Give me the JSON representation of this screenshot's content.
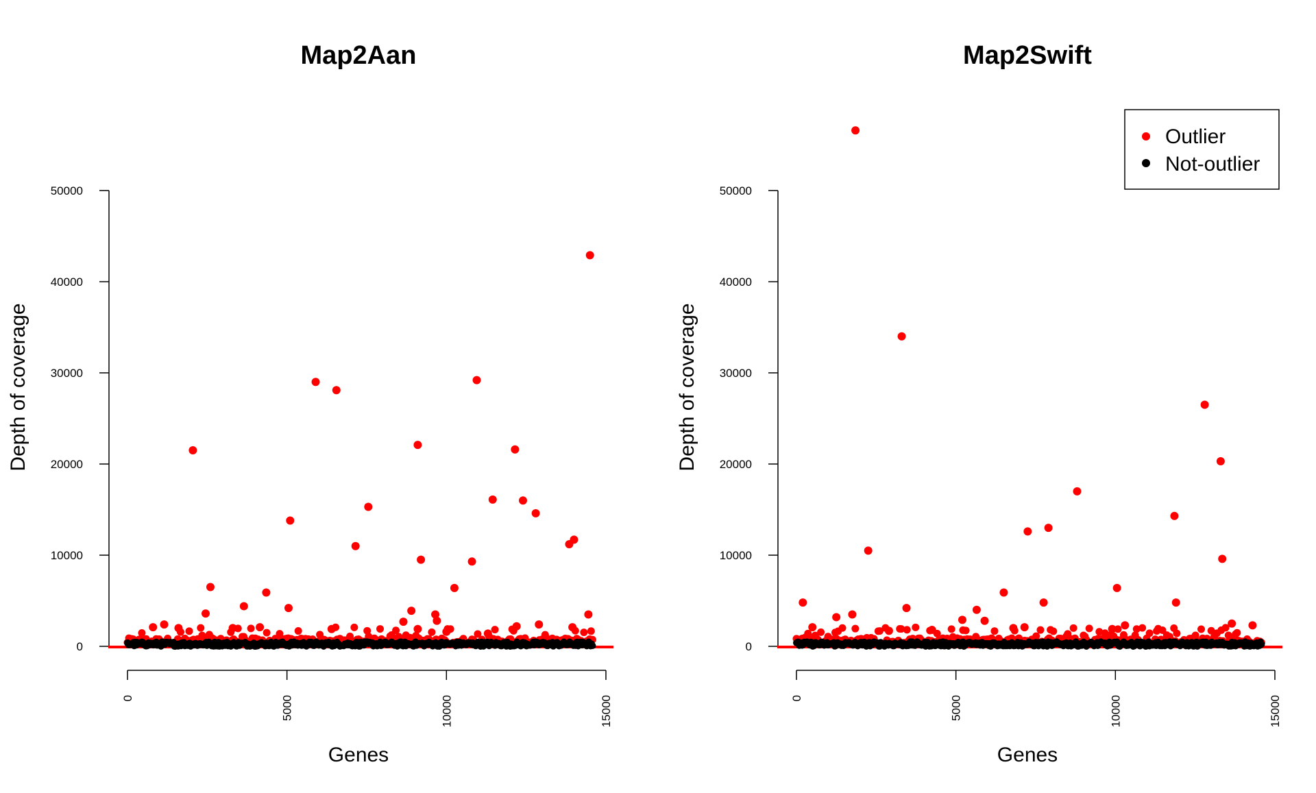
{
  "colors": {
    "outlier": "#ff0000",
    "not_outlier": "#000000",
    "axis": "#000000",
    "background": "#ffffff"
  },
  "legend": {
    "placement": "top-right of right panel",
    "entries": [
      {
        "label": "Outlier",
        "color": "#ff0000"
      },
      {
        "label": "Not-outlier",
        "color": "#000000"
      }
    ]
  },
  "chart_data": [
    {
      "type": "scatter",
      "title": "Map2Aan",
      "xlabel": "Genes",
      "ylabel": "Depth of coverage",
      "xlim": [
        0,
        15000
      ],
      "ylim": [
        0,
        50000
      ],
      "xticks": [
        0,
        5000,
        10000,
        15000
      ],
      "yticks": [
        0,
        10000,
        20000,
        30000,
        40000,
        50000
      ],
      "grid": false,
      "baseline": {
        "x_start": 0,
        "x_end": 14600,
        "description": "dense band of Outlier and Not-outlier points near 0-2000 across all genes"
      },
      "outliers": [
        [
          2050,
          21500
        ],
        [
          2450,
          3600
        ],
        [
          2600,
          6500
        ],
        [
          3650,
          4400
        ],
        [
          4350,
          5900
        ],
        [
          5050,
          4200
        ],
        [
          5100,
          13800
        ],
        [
          5900,
          29000
        ],
        [
          6550,
          28100
        ],
        [
          7150,
          11000
        ],
        [
          7550,
          15300
        ],
        [
          8650,
          2700
        ],
        [
          8900,
          3900
        ],
        [
          9100,
          22100
        ],
        [
          9200,
          9500
        ],
        [
          9650,
          3500
        ],
        [
          9700,
          2800
        ],
        [
          10250,
          6400
        ],
        [
          10800,
          9300
        ],
        [
          10950,
          29200
        ],
        [
          11450,
          16100
        ],
        [
          12150,
          21600
        ],
        [
          12400,
          16000
        ],
        [
          12800,
          14600
        ],
        [
          13850,
          11200
        ],
        [
          14000,
          11700
        ],
        [
          14500,
          42900
        ],
        [
          14450,
          3500
        ],
        [
          1150,
          2400
        ],
        [
          3300,
          2000
        ],
        [
          4150,
          2100
        ],
        [
          6400,
          1900
        ],
        [
          9100,
          1900
        ],
        [
          12200,
          2200
        ],
        [
          12900,
          2400
        ],
        [
          13950,
          2100
        ],
        [
          800,
          2100
        ],
        [
          1600,
          2000
        ],
        [
          10000,
          1600
        ],
        [
          11300,
          1400
        ]
      ]
    },
    {
      "type": "scatter",
      "title": "Map2Swift",
      "xlabel": "Genes",
      "ylabel": "Depth of coverage",
      "xlim": [
        0,
        15000
      ],
      "ylim": [
        0,
        50000
      ],
      "xticks": [
        0,
        5000,
        10000,
        15000
      ],
      "yticks": [
        0,
        10000,
        20000,
        30000,
        40000,
        50000
      ],
      "grid": false,
      "baseline": {
        "x_start": 0,
        "x_end": 14600,
        "description": "dense band of Outlier and Not-outlier points near 0-2000 across all genes"
      },
      "outliers": [
        [
          1850,
          56600
        ],
        [
          3300,
          34000
        ],
        [
          2250,
          10500
        ],
        [
          3450,
          4200
        ],
        [
          200,
          4800
        ],
        [
          1250,
          3200
        ],
        [
          1750,
          3500
        ],
        [
          5200,
          2900
        ],
        [
          5650,
          4000
        ],
        [
          5900,
          2800
        ],
        [
          6500,
          5900
        ],
        [
          7250,
          12600
        ],
        [
          7900,
          13000
        ],
        [
          7750,
          4800
        ],
        [
          8800,
          17000
        ],
        [
          10050,
          6400
        ],
        [
          11850,
          14300
        ],
        [
          11900,
          4800
        ],
        [
          12800,
          26500
        ],
        [
          13300,
          20300
        ],
        [
          13350,
          9600
        ],
        [
          13650,
          2500
        ],
        [
          14300,
          2300
        ],
        [
          6800,
          2000
        ],
        [
          7150,
          2100
        ],
        [
          10300,
          2300
        ],
        [
          9900,
          1900
        ],
        [
          2900,
          1700
        ],
        [
          4250,
          1800
        ],
        [
          500,
          2100
        ]
      ]
    }
  ]
}
